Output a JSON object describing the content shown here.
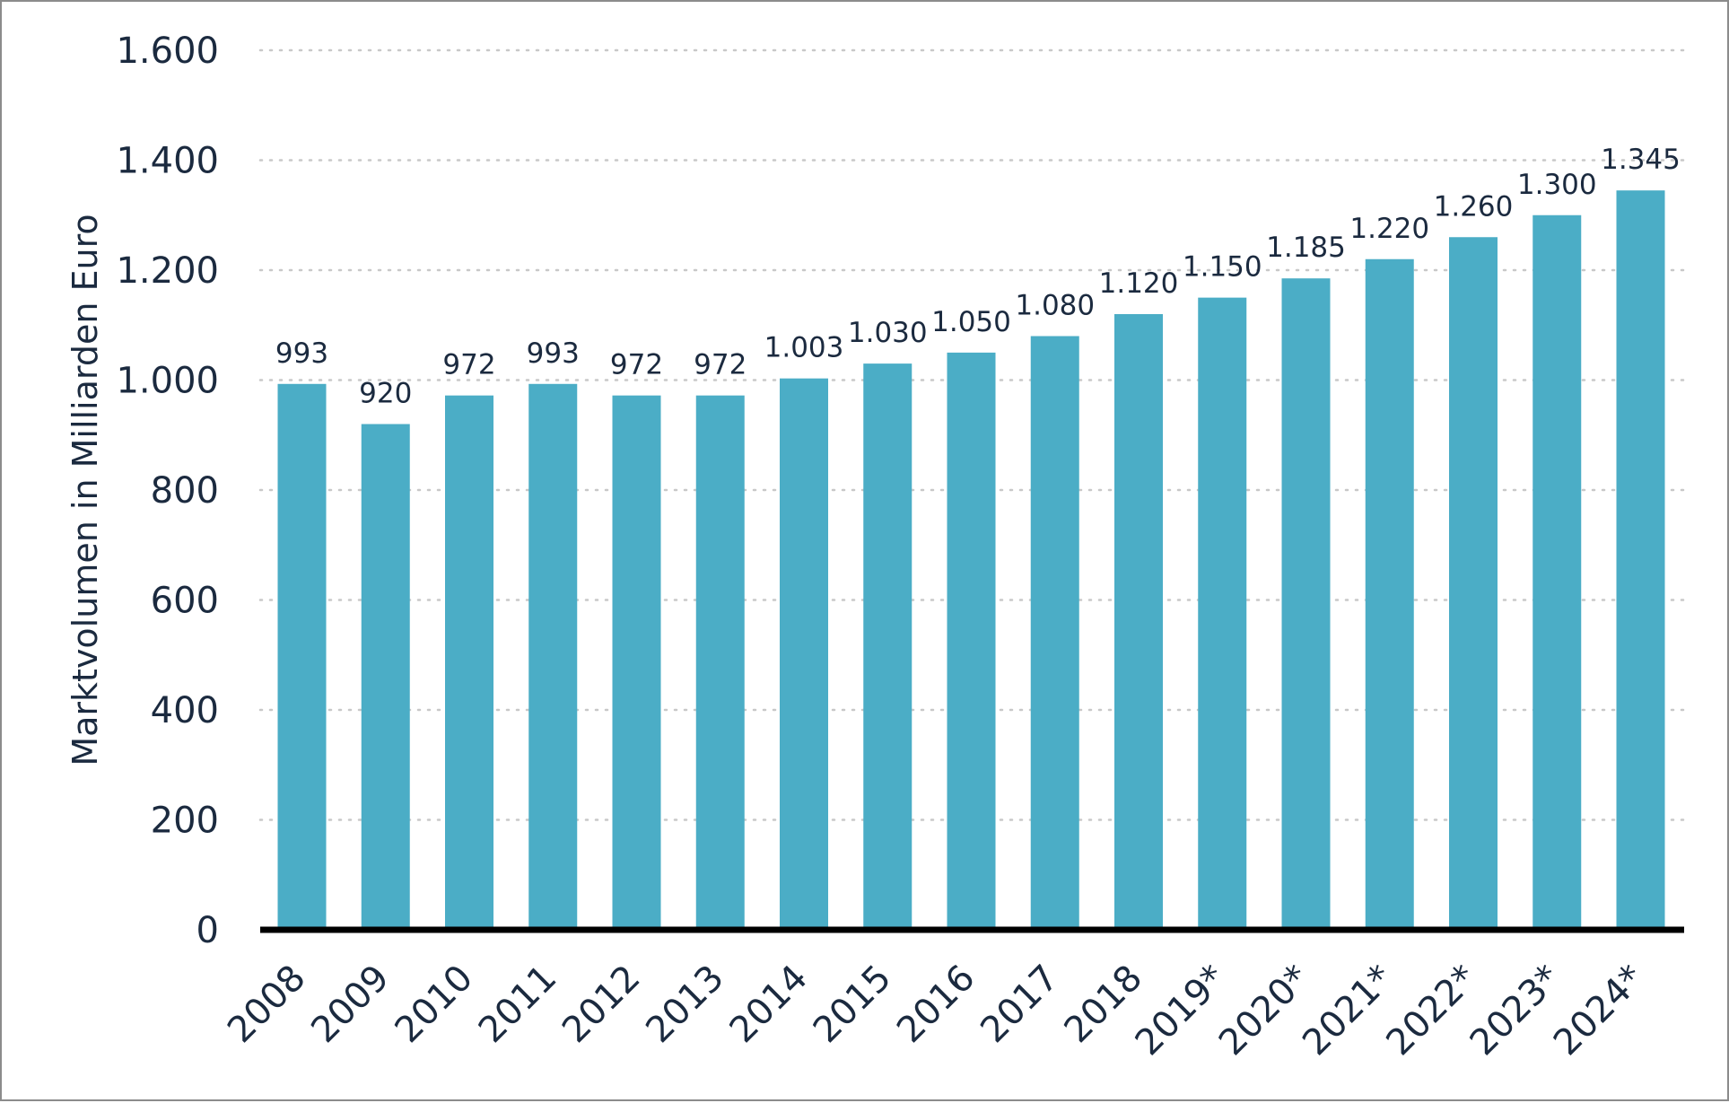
{
  "colors": {
    "bar": "#4badc6",
    "text": "#1b2a3f",
    "grid": "#c8c8c8",
    "axis": "#000000",
    "frame": "#8c8c8c"
  },
  "chart_data": {
    "type": "bar",
    "title": "",
    "xlabel": "",
    "ylabel": "Marktvolumen in Milliarden Euro",
    "ylim": [
      0,
      1600
    ],
    "yticks": [
      0,
      200,
      400,
      600,
      800,
      1000,
      1200,
      1400,
      1600
    ],
    "ytick_labels": [
      "0",
      "200",
      "400",
      "600",
      "800",
      "1.000",
      "1.200",
      "1.400",
      "1.600"
    ],
    "grid": "horizontal dotted",
    "categories": [
      "2008",
      "2009",
      "2010",
      "2011",
      "2012",
      "2013",
      "2014",
      "2015",
      "2016",
      "2017",
      "2018",
      "2019*",
      "2020*",
      "2021*",
      "2022*",
      "2023*",
      "2024*"
    ],
    "values": [
      993,
      920,
      972,
      993,
      972,
      972,
      1003,
      1030,
      1050,
      1080,
      1120,
      1150,
      1185,
      1220,
      1260,
      1300,
      1345
    ],
    "value_labels": [
      "993",
      "920",
      "972",
      "993",
      "972",
      "972",
      "1.003",
      "1.030",
      "1.050",
      "1.080",
      "1.120",
      "1.150",
      "1.185",
      "1.220",
      "1.260",
      "1.300",
      "1.345"
    ]
  }
}
